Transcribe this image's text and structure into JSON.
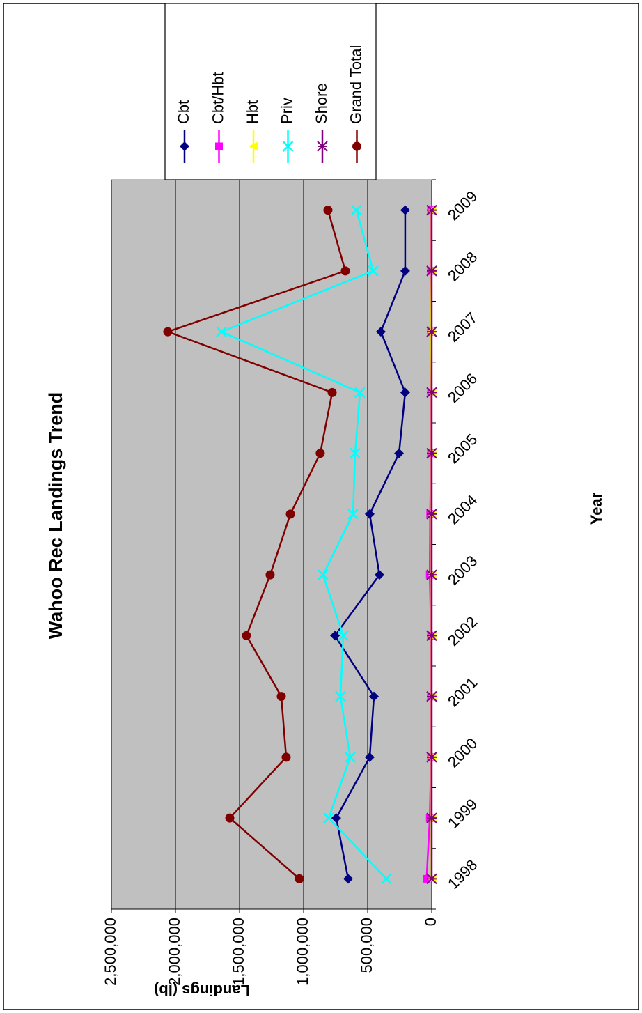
{
  "chart_data": {
    "type": "line",
    "title": "Wahoo Rec Landings Trend",
    "x_label": "Year",
    "y_label": "Landings (lb)",
    "categories": [
      "1998",
      "1999",
      "2000",
      "2001",
      "2002",
      "2003",
      "2004",
      "2005",
      "2006",
      "2007",
      "2008",
      "2009"
    ],
    "series": [
      {
        "name": "Cbt",
        "color": "#000080",
        "marker": "diamond",
        "values": [
          652000,
          745000,
          484000,
          451000,
          755000,
          408000,
          484000,
          255000,
          207000,
          397000,
          207000,
          207000
        ]
      },
      {
        "name": "Cbt/Hbt",
        "color": "#ff00ff",
        "marker": "square",
        "values": [
          40000,
          15000,
          5000,
          5000,
          5000,
          15000,
          12000,
          5000,
          5000,
          5000,
          5000,
          5000
        ]
      },
      {
        "name": "Hbt",
        "color": "#ffff00",
        "marker": "triangle",
        "values": [
          2000,
          2000,
          2000,
          2000,
          2000,
          2000,
          2000,
          2000,
          2000,
          5000,
          2000,
          2000
        ]
      },
      {
        "name": "Priv",
        "color": "#00ffff",
        "marker": "x",
        "values": [
          353000,
          804000,
          636000,
          712000,
          690000,
          848000,
          614000,
          598000,
          560000,
          1641000,
          457000,
          587000
        ]
      },
      {
        "name": "Shore",
        "color": "#800080",
        "marker": "star",
        "values": [
          0,
          0,
          0,
          0,
          0,
          0,
          0,
          0,
          0,
          0,
          0,
          0
        ]
      },
      {
        "name": "Grand Total",
        "color": "#800000",
        "marker": "circle",
        "values": [
          1033000,
          1576000,
          1136000,
          1174000,
          1446000,
          1261000,
          1103000,
          870000,
          777000,
          2060000,
          674000,
          810000
        ]
      }
    ],
    "ylim": [
      0,
      2500000
    ],
    "yticks": [
      {
        "value": 0,
        "label": "0"
      },
      {
        "value": 500000,
        "label": "500,000"
      },
      {
        "value": 1000000,
        "label": "1,000,000"
      },
      {
        "value": 1500000,
        "label": "1,500,000"
      },
      {
        "value": 2000000,
        "label": "2,000,000"
      },
      {
        "value": 2500000,
        "label": "2,500,000"
      }
    ],
    "grid": true,
    "legend": "right",
    "plot_background": "#c0c0c0"
  }
}
